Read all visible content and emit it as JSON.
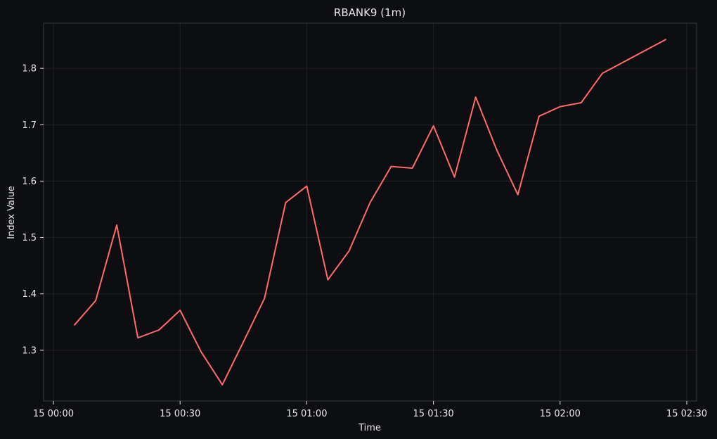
{
  "chart_data": {
    "type": "line",
    "title": "RBANK9 (1m)",
    "xlabel": "Time",
    "ylabel": "Index Value",
    "x_ticks": [
      "15 00:00",
      "15 00:30",
      "15 01:00",
      "15 01:30",
      "15 02:00",
      "15 02:30"
    ],
    "y_ticks": [
      "1.3",
      "1.4",
      "1.5",
      "1.6",
      "1.7",
      "1.8"
    ],
    "xlim": [
      "15 00:00",
      "15 02:30"
    ],
    "ylim": [
      1.21,
      1.88
    ],
    "grid": true,
    "colors": {
      "background": "#0d0e11",
      "line": "#ff6b6b",
      "text": "#e8e8e8",
      "grid": "#1f2127",
      "axis": "#3a3c42"
    },
    "series": [
      {
        "x": [
          "15 00:05",
          "15 00:10",
          "15 00:15",
          "15 00:20",
          "15 00:25",
          "15 00:30",
          "15 00:35",
          "15 00:40",
          "15 00:45",
          "15 00:50",
          "15 00:55",
          "15 01:00",
          "15 01:05",
          "15 01:10",
          "15 01:15",
          "15 01:20",
          "15 01:25",
          "15 01:30",
          "15 01:35",
          "15 01:40",
          "15 01:45",
          "15 01:50",
          "15 01:55",
          "15 02:00",
          "15 02:05",
          "15 02:10",
          "15 02:15",
          "15 02:20",
          "15 02:25"
        ],
        "values": [
          1.345,
          1.388,
          1.522,
          1.322,
          1.336,
          1.371,
          1.297,
          1.239,
          1.315,
          1.392,
          1.562,
          1.591,
          1.425,
          1.476,
          1.562,
          1.626,
          1.623,
          1.698,
          1.607,
          1.749,
          1.655,
          1.576,
          1.715,
          1.732,
          1.739,
          1.791,
          1.811,
          1.831,
          1.851
        ]
      }
    ]
  }
}
